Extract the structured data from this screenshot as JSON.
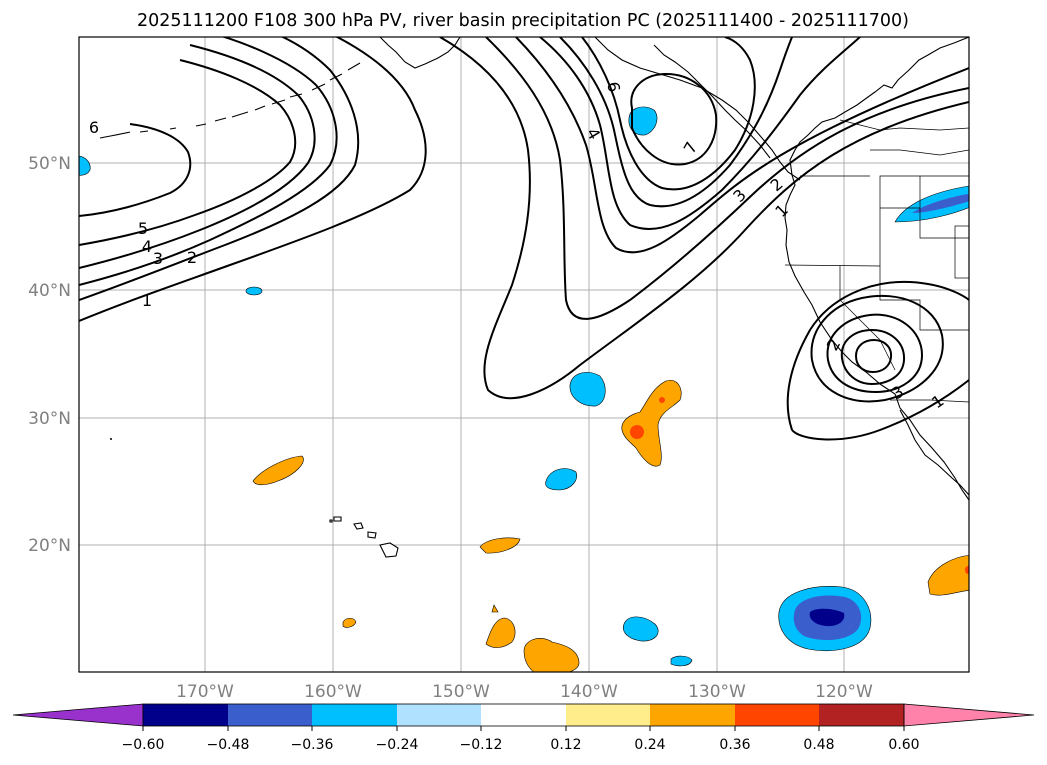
{
  "title": "2025111200 F108 300 hPa PV, river basin precipitation PC (2025111400 - 2025111700)",
  "lat_labels": [
    "50°N",
    "40°N",
    "30°N",
    "20°N"
  ],
  "lon_labels": [
    "170°W",
    "160°W",
    "150°W",
    "140°W",
    "130°W",
    "120°W"
  ],
  "colorbar": {
    "tick_labels": [
      "−0.60",
      "−0.48",
      "−0.36",
      "−0.24",
      "−0.12",
      "0.12",
      "0.24",
      "0.36",
      "0.48",
      "0.60"
    ],
    "bins": [
      {
        "color": "#9932cc"
      },
      {
        "color": "#00008b"
      },
      {
        "color": "#3a5fcd"
      },
      {
        "color": "#00bfff"
      },
      {
        "color": "#b0e2ff"
      },
      {
        "color": "#ffffff"
      },
      {
        "color": "#ffec8b"
      },
      {
        "color": "#ffa500"
      },
      {
        "color": "#ff4500"
      },
      {
        "color": "#b22222"
      },
      {
        "color": "#ff82ab"
      }
    ]
  },
  "contour_labels": [
    {
      "text": "6"
    },
    {
      "text": "5"
    },
    {
      "text": "4"
    },
    {
      "text": "3"
    },
    {
      "text": "2"
    },
    {
      "text": "1"
    },
    {
      "text": "6"
    },
    {
      "text": "4"
    },
    {
      "text": "7"
    },
    {
      "text": "3"
    },
    {
      "text": "1"
    },
    {
      "text": "2"
    },
    {
      "text": "2"
    },
    {
      "text": "3"
    },
    {
      "text": "1"
    }
  ]
}
